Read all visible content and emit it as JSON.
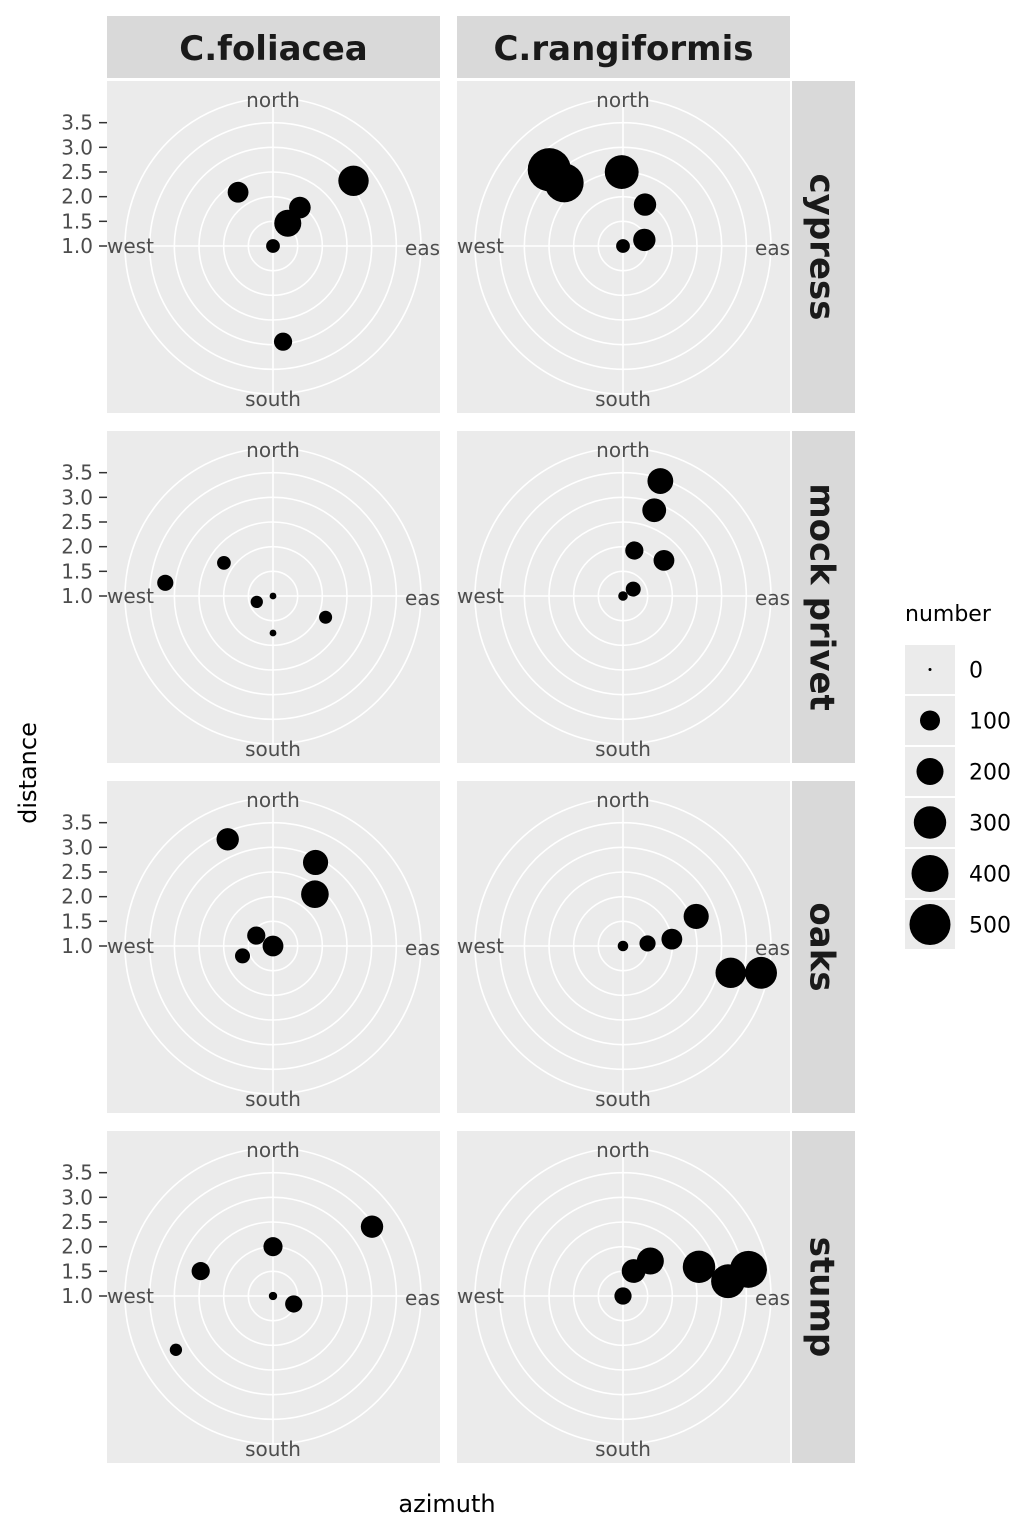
{
  "chart_data": {
    "type": "scatter",
    "coord": "polar",
    "xlabel": "azimuth",
    "ylabel": "distance",
    "facet_cols": [
      "C.foliacea",
      "C.rangiformis"
    ],
    "facet_rows": [
      "cypress",
      "mock privet",
      "oaks",
      "stump"
    ],
    "theta_labels": [
      "north",
      "east",
      "south",
      "west"
    ],
    "theta_label_display": [
      "north",
      "eas",
      "south",
      "west"
    ],
    "r_ticks": [
      1.0,
      1.5,
      2.0,
      2.5,
      3.0,
      3.5
    ],
    "r_tick_labels": [
      "1.0",
      "1.5",
      "2.0",
      "2.5",
      "3.0",
      "3.5"
    ],
    "r_range": [
      1.0,
      4.0
    ],
    "grid": true,
    "legend": {
      "title": "number",
      "placement": "right",
      "breaks": [
        0,
        100,
        200,
        300,
        400,
        500
      ],
      "labels": [
        "0",
        "100",
        "200",
        "300",
        "400",
        "500"
      ]
    },
    "panels": [
      {
        "col": "C.foliacea",
        "row": "cypress",
        "points": [
          {
            "azimuth": 0,
            "distance": 1.0,
            "number": 40
          },
          {
            "azimuth": 33,
            "distance": 1.55,
            "number": 200
          },
          {
            "azimuth": 35,
            "distance": 1.95,
            "number": 120
          },
          {
            "azimuth": 327,
            "distance": 2.3,
            "number": 110
          },
          {
            "azimuth": 51,
            "distance": 3.1,
            "number": 260
          },
          {
            "azimuth": 174,
            "distance": 2.95,
            "number": 80
          }
        ]
      },
      {
        "col": "C.rangiformis",
        "row": "cypress",
        "points": [
          {
            "azimuth": 0,
            "distance": 1.0,
            "number": 40
          },
          {
            "azimuth": 74,
            "distance": 1.45,
            "number": 130
          },
          {
            "azimuth": 28,
            "distance": 1.95,
            "number": 130
          },
          {
            "azimuth": 359,
            "distance": 2.5,
            "number": 330
          },
          {
            "azimuth": 317,
            "distance": 2.75,
            "number": 450
          },
          {
            "azimuth": 316,
            "distance": 3.15,
            "number": 560
          }
        ]
      },
      {
        "col": "C.foliacea",
        "row": "mock privet",
        "points": [
          {
            "azimuth": 0,
            "distance": 1.0,
            "number": 5
          },
          {
            "azimuth": 250,
            "distance": 1.35,
            "number": 30
          },
          {
            "azimuth": 180,
            "distance": 1.75,
            "number": 5
          },
          {
            "azimuth": 112,
            "distance": 2.15,
            "number": 35
          },
          {
            "azimuth": 304,
            "distance": 2.2,
            "number": 40
          },
          {
            "azimuth": 277,
            "distance": 3.2,
            "number": 60
          }
        ]
      },
      {
        "col": "C.rangiformis",
        "row": "mock privet",
        "points": [
          {
            "azimuth": 0,
            "distance": 1.0,
            "number": 15
          },
          {
            "azimuth": 56,
            "distance": 1.25,
            "number": 50
          },
          {
            "azimuth": 14,
            "distance": 1.95,
            "number": 80
          },
          {
            "azimuth": 49,
            "distance": 2.1,
            "number": 110
          },
          {
            "azimuth": 20,
            "distance": 2.85,
            "number": 150
          },
          {
            "azimuth": 18,
            "distance": 3.45,
            "number": 180
          }
        ]
      },
      {
        "col": "C.foliacea",
        "row": "oaks",
        "points": [
          {
            "azimuth": 0,
            "distance": 1.0,
            "number": 110
          },
          {
            "azimuth": 302,
            "distance": 1.4,
            "number": 80
          },
          {
            "azimuth": 252,
            "distance": 1.65,
            "number": 50
          },
          {
            "azimuth": 39,
            "distance": 2.35,
            "number": 210
          },
          {
            "azimuth": 27,
            "distance": 2.9,
            "number": 170
          },
          {
            "azimuth": 337,
            "distance": 3.35,
            "number": 130
          }
        ]
      },
      {
        "col": "C.rangiformis",
        "row": "oaks",
        "points": [
          {
            "azimuth": 0,
            "distance": 1.0,
            "number": 20
          },
          {
            "azimuth": 84,
            "distance": 1.5,
            "number": 60
          },
          {
            "azimuth": 82,
            "distance": 2.0,
            "number": 110
          },
          {
            "azimuth": 68,
            "distance": 2.6,
            "number": 170
          },
          {
            "azimuth": 104,
            "distance": 3.25,
            "number": 260
          },
          {
            "azimuth": 101,
            "distance": 3.85,
            "number": 290
          }
        ]
      },
      {
        "col": "C.foliacea",
        "row": "stump",
        "points": [
          {
            "azimuth": 0,
            "distance": 1.0,
            "number": 10
          },
          {
            "azimuth": 111,
            "distance": 1.45,
            "number": 70
          },
          {
            "azimuth": 0,
            "distance": 2.0,
            "number": 90
          },
          {
            "azimuth": 289,
            "distance": 2.55,
            "number": 80
          },
          {
            "azimuth": 241,
            "distance": 3.25,
            "number": 30
          },
          {
            "azimuth": 55,
            "distance": 3.45,
            "number": 130
          }
        ]
      },
      {
        "col": "C.rangiformis",
        "row": "stump",
        "points": [
          {
            "azimuth": 0,
            "distance": 1.0,
            "number": 70
          },
          {
            "azimuth": 23,
            "distance": 1.55,
            "number": 150
          },
          {
            "azimuth": 38,
            "distance": 1.9,
            "number": 200
          },
          {
            "azimuth": 69,
            "distance": 2.65,
            "number": 300
          },
          {
            "azimuth": 82,
            "distance": 3.15,
            "number": 330
          },
          {
            "azimuth": 78,
            "distance": 3.6,
            "number": 400
          }
        ]
      }
    ]
  }
}
